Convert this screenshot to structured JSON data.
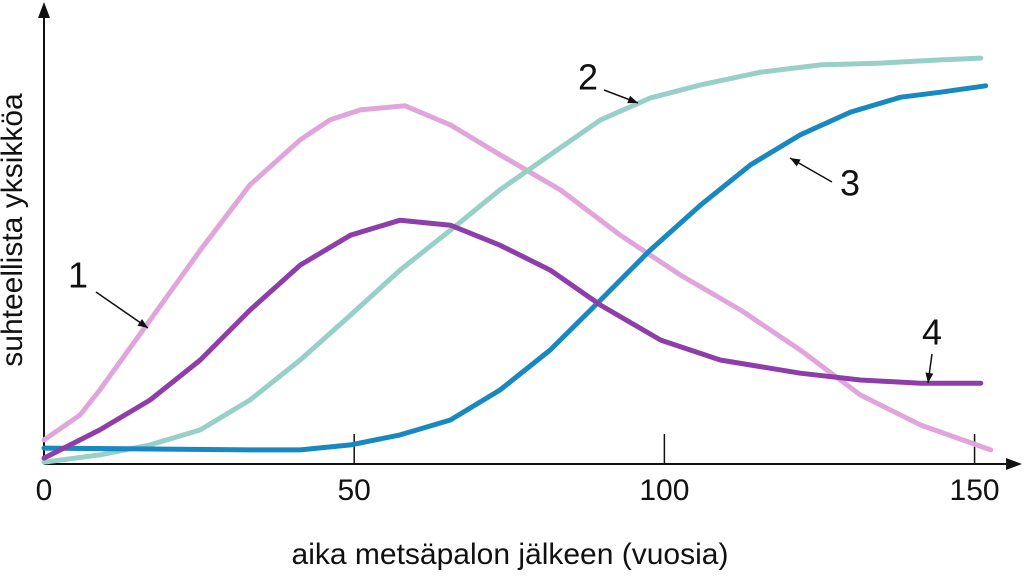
{
  "chart_data": {
    "type": "line",
    "y_label": "suhteellista yksikköa",
    "x_label": "aika metsäpalon jälkeen (vuosia)",
    "xlim": [
      0,
      157
    ],
    "xticks": [
      0,
      50,
      100,
      150
    ],
    "ylim": [
      0,
      100
    ],
    "series": [
      {
        "name": "1",
        "color": "#e0a6dc",
        "x": [
          0,
          5.8,
          9.0,
          17.1,
          25.2,
          33.2,
          41.3,
          46.1,
          51.0,
          58.2,
          65.5,
          73.5,
          83.2,
          92.9,
          102.6,
          112.3,
          121.9,
          131.6,
          141.3,
          152.6
        ],
        "values": [
          5.3,
          10.8,
          16.3,
          31.7,
          47.1,
          61.5,
          71.4,
          75.8,
          78.0,
          78.9,
          74.7,
          68.1,
          60.4,
          50.4,
          41.6,
          33.9,
          25.1,
          15.2,
          8.6,
          3.1
        ]
      },
      {
        "name": "2",
        "color": "#98cfc6",
        "x": [
          0,
          9.0,
          17.1,
          25.2,
          33.2,
          41.3,
          49.4,
          57.4,
          65.5,
          73.5,
          81.6,
          89.7,
          97.7,
          105.8,
          115.5,
          125.2,
          134.8,
          144.5,
          151.0
        ],
        "values": [
          0.4,
          2.0,
          4.2,
          7.5,
          14.1,
          22.9,
          32.8,
          42.7,
          51.5,
          60.4,
          68.1,
          75.8,
          80.6,
          83.5,
          86.3,
          87.9,
          88.3,
          89.0,
          89.4
        ]
      },
      {
        "name": "3",
        "color": "#1789c0",
        "x": [
          0,
          17.1,
          33.2,
          41.3,
          49.4,
          57.4,
          65.5,
          73.5,
          81.6,
          89.7,
          97.7,
          105.8,
          113.9,
          121.9,
          130.0,
          138.1,
          144.5,
          151.8
        ],
        "values": [
          3.5,
          3.3,
          3.1,
          3.1,
          4.2,
          6.4,
          9.7,
          16.3,
          25.1,
          36.1,
          47.1,
          57.0,
          65.9,
          72.5,
          77.5,
          80.8,
          81.9,
          83.3
        ]
      },
      {
        "name": "4",
        "color": "#8e3ea8",
        "x": [
          0,
          9.0,
          17.1,
          25.2,
          33.2,
          41.3,
          49.4,
          57.4,
          65.5,
          73.5,
          81.6,
          89.7,
          99.4,
          109.0,
          121.9,
          131.6,
          141.3,
          151.0
        ],
        "values": [
          1.3,
          7.5,
          14.1,
          22.9,
          33.9,
          43.8,
          50.4,
          53.7,
          52.6,
          48.2,
          42.7,
          35.0,
          27.3,
          22.9,
          20.0,
          18.5,
          17.8,
          17.8
        ]
      }
    ]
  }
}
